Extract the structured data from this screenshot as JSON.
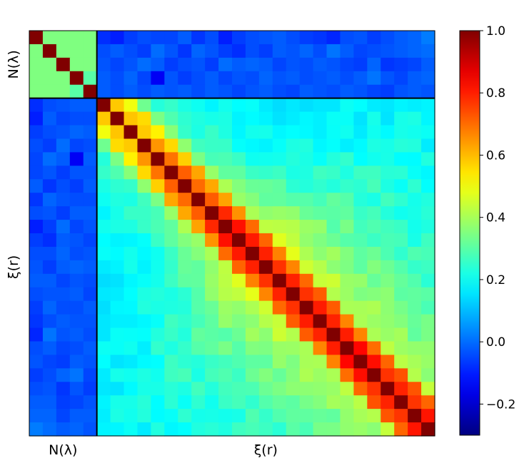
{
  "chart_data": {
    "type": "heatmap",
    "title": "",
    "matrix_size": 30,
    "blocks": [
      {
        "name": "N(λ)",
        "size": 5
      },
      {
        "name": "ξ(r)",
        "size": 25
      }
    ],
    "xlabels": {
      "block1": "N(λ)",
      "block2": "ξ(r)"
    },
    "ylabels": {
      "block1": "N(λ)",
      "block2": "ξ(r)"
    },
    "colorbar": {
      "colormap": "jet",
      "vmin": -0.3,
      "vmax": 1.0,
      "ticks": [
        -0.2,
        0.0,
        0.2,
        0.4,
        0.6,
        0.8,
        1.0
      ],
      "tick_labels": [
        "−0.2",
        "0.0",
        "0.2",
        "0.4",
        "0.6",
        "0.8",
        "1.0"
      ]
    },
    "structure": {
      "diagonal": 1.0,
      "n_block_offdiag": 0.35,
      "n_xi_cross": -0.05,
      "xi_near_diag_neighbor": 0.72,
      "xi_far_offdiag": 0.1
    },
    "values": [
      [
        1.0,
        0.35,
        0.35,
        0.35,
        0.35,
        -0.08,
        -0.1,
        -0.06,
        -0.04,
        -0.05,
        -0.05,
        -0.02,
        -0.07,
        -0.04,
        -0.1,
        -0.06,
        -0.04,
        -0.03,
        -0.02,
        -0.04,
        -0.06,
        -0.07,
        -0.09,
        -0.04,
        -0.03,
        -0.06,
        -0.04,
        -0.02,
        -0.01,
        0.02
      ],
      [
        0.35,
        1.0,
        0.35,
        0.35,
        0.35,
        -0.04,
        -0.02,
        -0.04,
        -0.06,
        0.0,
        -0.03,
        -0.07,
        -0.01,
        -0.03,
        -0.06,
        -0.08,
        -0.04,
        -0.06,
        -0.02,
        -0.03,
        -0.01,
        -0.04,
        0.01,
        -0.02,
        -0.05,
        -0.04,
        -0.03,
        -0.02,
        -0.01,
        0.0
      ],
      [
        0.35,
        0.35,
        1.0,
        0.35,
        0.35,
        -0.03,
        -0.05,
        -0.03,
        0.0,
        -0.02,
        -0.06,
        -0.04,
        -0.03,
        -0.06,
        0.0,
        -0.02,
        -0.01,
        -0.02,
        -0.05,
        -0.03,
        -0.04,
        -0.02,
        -0.03,
        -0.05,
        -0.06,
        -0.01,
        -0.07,
        -0.06,
        -0.05,
        -0.02
      ],
      [
        0.35,
        0.35,
        0.35,
        1.0,
        0.3,
        -0.02,
        -0.04,
        -0.01,
        -0.05,
        -0.15,
        -0.03,
        -0.06,
        -0.04,
        -0.02,
        -0.05,
        -0.03,
        -0.04,
        -0.01,
        -0.03,
        -0.02,
        -0.04,
        -0.03,
        -0.02,
        -0.04,
        -0.02,
        0.01,
        -0.03,
        -0.05,
        -0.02,
        -0.01
      ],
      [
        0.35,
        0.35,
        0.35,
        0.3,
        1.0,
        -0.02,
        -0.04,
        -0.02,
        -0.04,
        -0.02,
        -0.03,
        -0.02,
        -0.04,
        -0.02,
        -0.03,
        -0.05,
        -0.03,
        -0.02,
        -0.04,
        -0.05,
        -0.02,
        -0.03,
        -0.04,
        -0.02,
        -0.03,
        -0.05,
        -0.06,
        -0.03,
        -0.02,
        -0.03
      ]
    ]
  }
}
